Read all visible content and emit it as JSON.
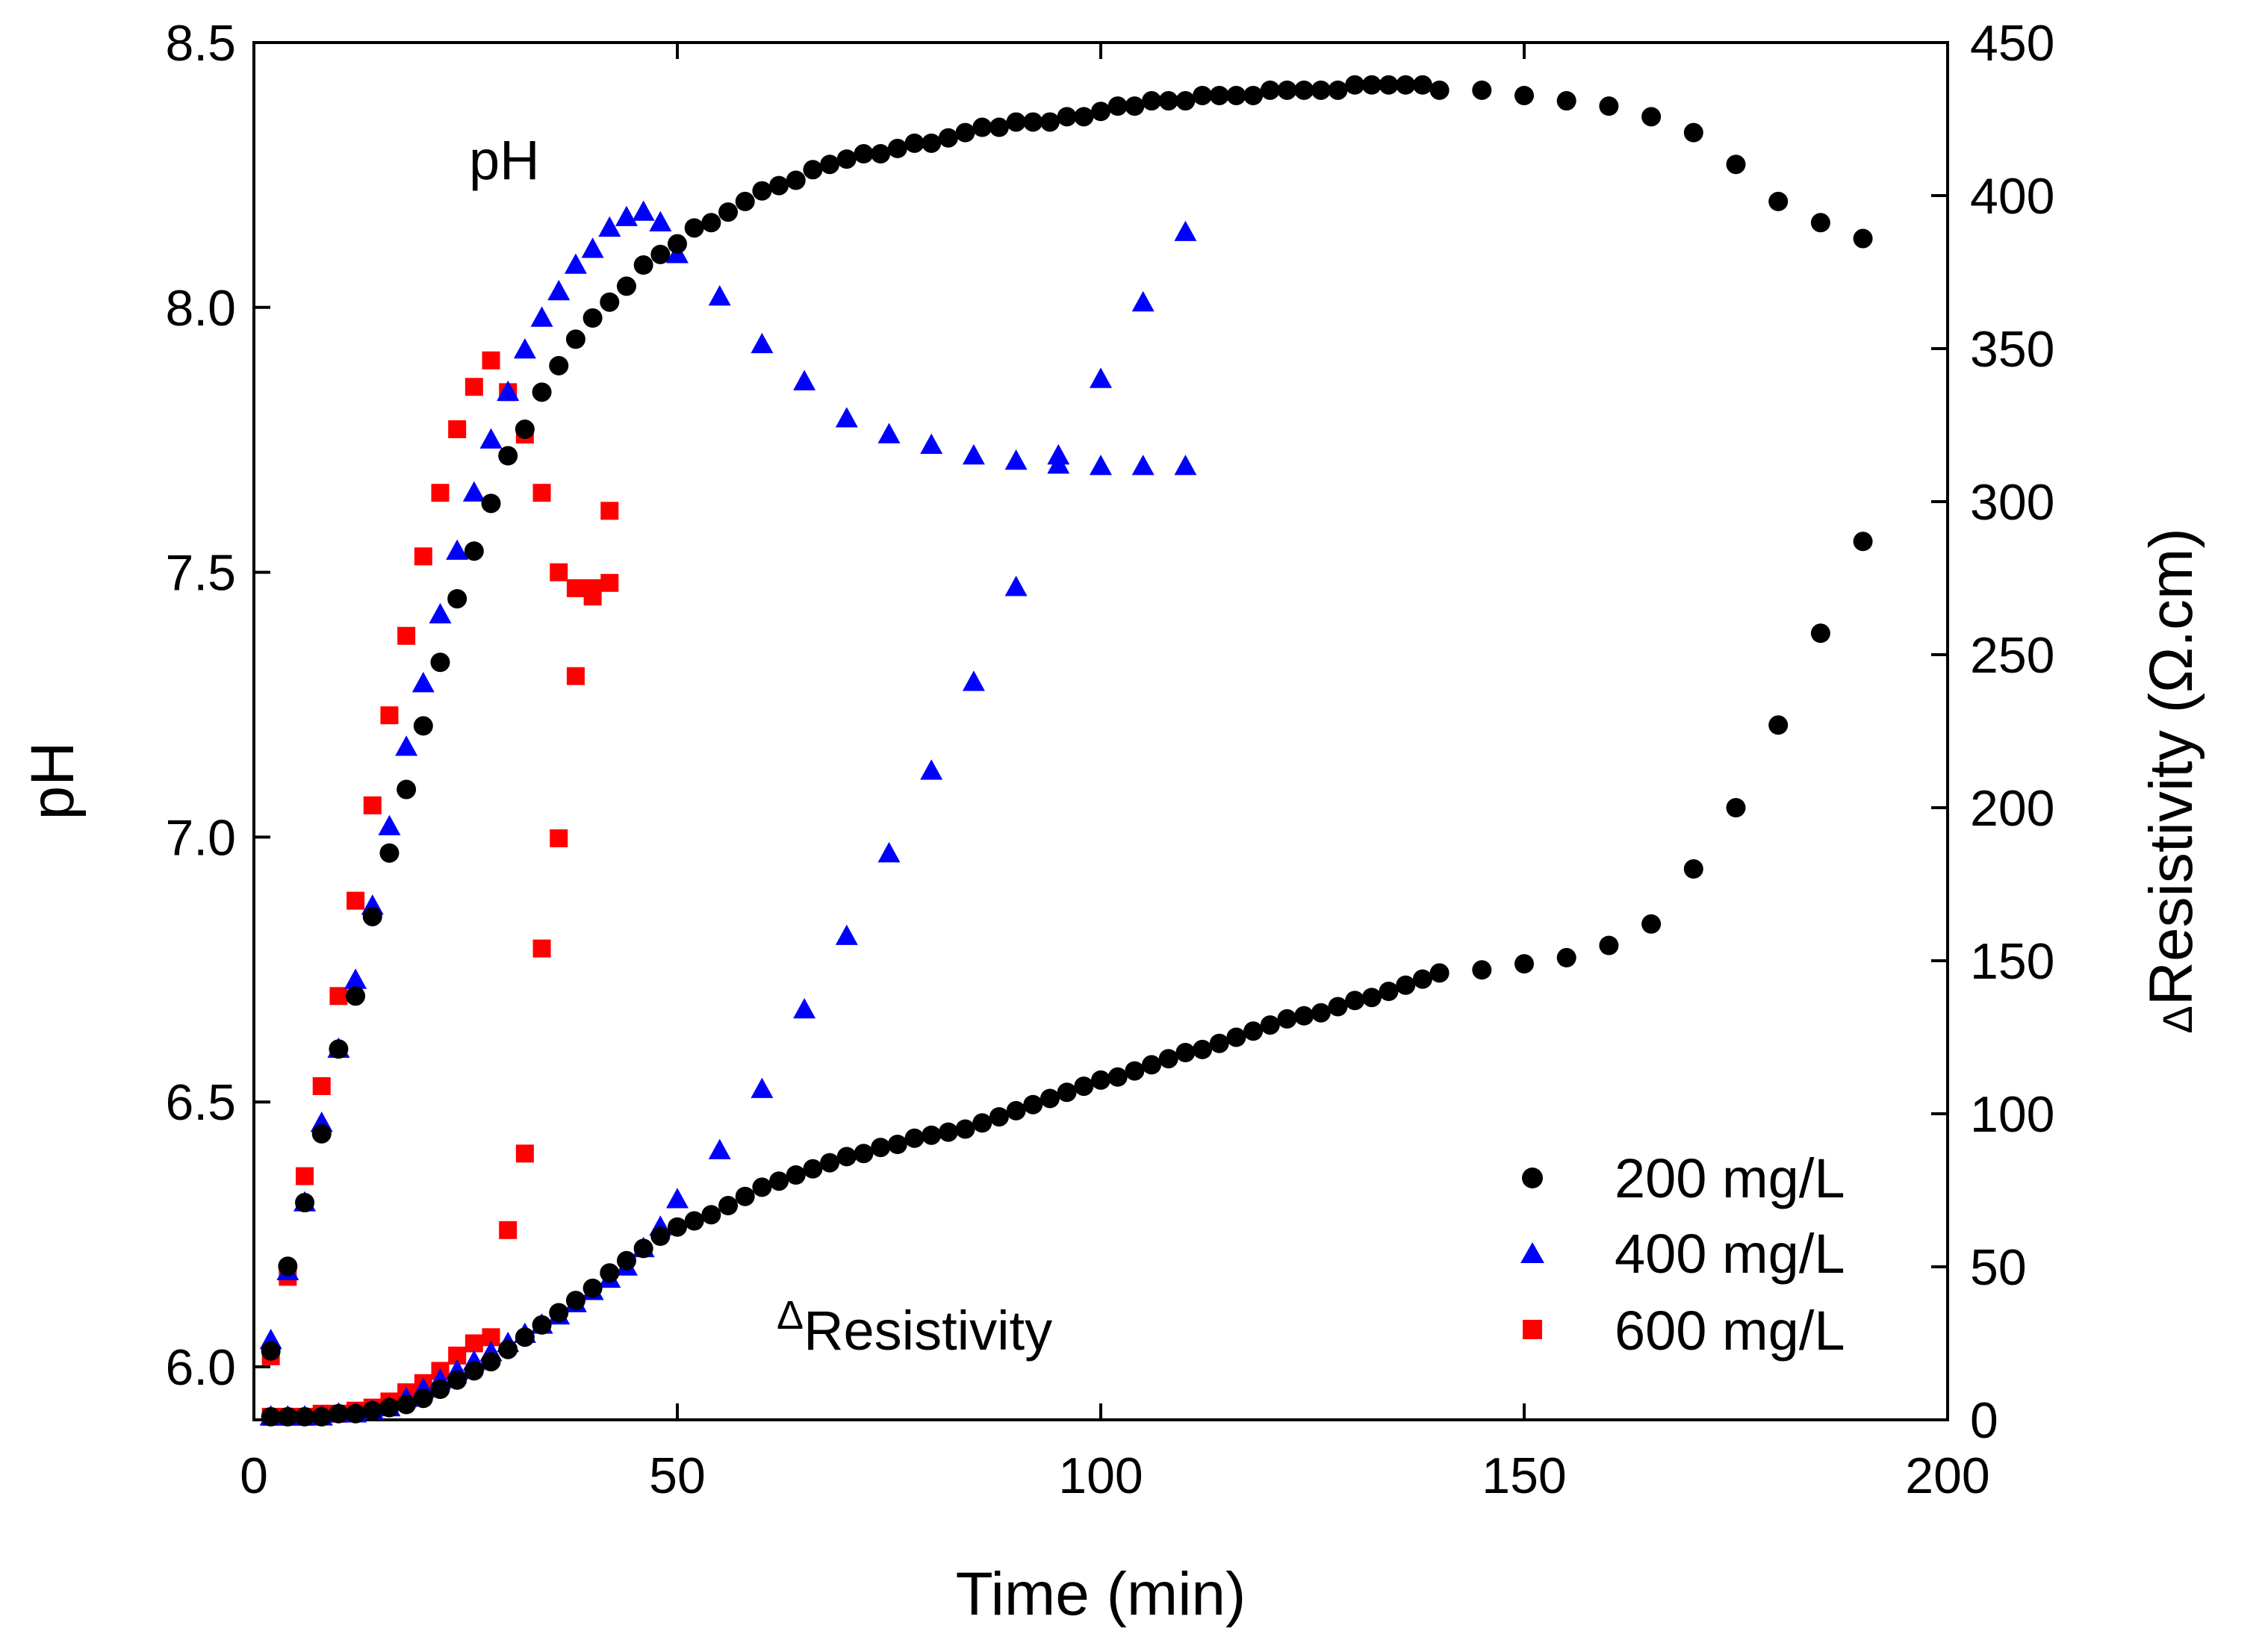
{
  "chart_data": {
    "type": "scatter",
    "title": "",
    "xlabel": "Time (min)",
    "ylabel": "pH",
    "y2label": "Resistivity (Ω.cm)",
    "y2label_prefix": "Δ",
    "xlim": [
      0,
      200
    ],
    "ylim": [
      5.9,
      8.5
    ],
    "y2lim": [
      0,
      450
    ],
    "x_ticks": [
      "0",
      "50",
      "100",
      "150",
      "200"
    ],
    "y_ticks": [
      "6.0",
      "6.5",
      "7.0",
      "7.5",
      "8.0",
      "8.5"
    ],
    "y2_ticks": [
      "0",
      "50",
      "100",
      "150",
      "200",
      "250",
      "300",
      "350",
      "400",
      "450"
    ],
    "grid": false,
    "legend_position": "bottom-right",
    "annotations": {
      "ph_label": "pH",
      "resistivity_label_prefix": "Δ",
      "resistivity_label": "Resistivity"
    },
    "series": [
      {
        "name": "200 mg/L",
        "color": "#000000",
        "marker": "circle",
        "ph": {
          "x": [
            2,
            4,
            6,
            8,
            10,
            12,
            14,
            16,
            18,
            20,
            22,
            24,
            26,
            28,
            30,
            32,
            34,
            36,
            38,
            40,
            42,
            44,
            46,
            48,
            50,
            52,
            54,
            56,
            58,
            60,
            62,
            64,
            66,
            68,
            70,
            72,
            74,
            76,
            78,
            80,
            82,
            84,
            86,
            88,
            90,
            92,
            94,
            96,
            98,
            100,
            102,
            104,
            106,
            108,
            110,
            112,
            114,
            116,
            118,
            120,
            122,
            124,
            126,
            128,
            130,
            132,
            134,
            136,
            138,
            140,
            145,
            150,
            155,
            160,
            165,
            170,
            175,
            180,
            185,
            190
          ],
          "y": [
            6.03,
            6.19,
            6.31,
            6.44,
            6.6,
            6.7,
            6.85,
            6.97,
            7.09,
            7.21,
            7.33,
            7.45,
            7.54,
            7.63,
            7.72,
            7.77,
            7.84,
            7.89,
            7.94,
            7.98,
            8.01,
            8.04,
            8.08,
            8.1,
            8.12,
            8.15,
            8.16,
            8.18,
            8.2,
            8.22,
            8.23,
            8.24,
            8.26,
            8.27,
            8.28,
            8.29,
            8.29,
            8.3,
            8.31,
            8.31,
            8.32,
            8.33,
            8.34,
            8.34,
            8.35,
            8.35,
            8.35,
            8.36,
            8.36,
            8.37,
            8.38,
            8.38,
            8.39,
            8.39,
            8.39,
            8.4,
            8.4,
            8.4,
            8.4,
            8.41,
            8.41,
            8.41,
            8.41,
            8.41,
            8.42,
            8.42,
            8.42,
            8.42,
            8.42,
            8.41,
            8.41,
            8.4,
            8.39,
            8.38,
            8.36,
            8.33,
            8.27,
            8.2,
            8.16,
            8.13
          ]
        },
        "resistivity": {
          "x": [
            2,
            4,
            6,
            8,
            10,
            12,
            14,
            16,
            18,
            20,
            22,
            24,
            26,
            28,
            30,
            32,
            34,
            36,
            38,
            40,
            42,
            44,
            46,
            48,
            50,
            52,
            54,
            56,
            58,
            60,
            62,
            64,
            66,
            68,
            70,
            72,
            74,
            76,
            78,
            80,
            82,
            84,
            86,
            88,
            90,
            92,
            94,
            96,
            98,
            100,
            102,
            104,
            106,
            108,
            110,
            112,
            114,
            116,
            118,
            120,
            122,
            124,
            126,
            128,
            130,
            132,
            134,
            136,
            138,
            140,
            145,
            150,
            155,
            160,
            165,
            170,
            175,
            180,
            185,
            190
          ],
          "y": [
            1,
            1,
            1,
            1,
            2,
            2,
            3,
            4,
            5,
            7,
            10,
            13,
            16,
            19,
            23,
            27,
            31,
            35,
            39,
            43,
            48,
            52,
            56,
            60,
            63,
            65,
            67,
            70,
            73,
            76,
            78,
            80,
            82,
            84,
            86,
            87,
            89,
            90,
            92,
            93,
            94,
            95,
            97,
            99,
            101,
            103,
            105,
            107,
            109,
            111,
            112,
            114,
            116,
            118,
            120,
            121,
            123,
            125,
            127,
            129,
            131,
            132,
            133,
            135,
            137,
            138,
            140,
            142,
            144,
            146,
            147,
            149,
            151,
            155,
            162,
            180,
            200,
            227,
            257,
            287
          ]
        }
      },
      {
        "name": "400 mg/L",
        "color": "#0000FF",
        "marker": "triangle",
        "ph": {
          "x": [
            2,
            4,
            6,
            8,
            10,
            12,
            14,
            16,
            18,
            20,
            22,
            24,
            26,
            28,
            30,
            32,
            34,
            36,
            38,
            40,
            42,
            44,
            46,
            48,
            50,
            55,
            60,
            65,
            70,
            75,
            80,
            85,
            90,
            95,
            100,
            105,
            110
          ],
          "y": [
            6.05,
            6.18,
            6.31,
            6.46,
            6.6,
            6.73,
            6.87,
            7.02,
            7.17,
            7.29,
            7.42,
            7.54,
            7.65,
            7.75,
            7.84,
            7.92,
            7.98,
            8.03,
            8.08,
            8.11,
            8.15,
            8.17,
            8.18,
            8.16,
            8.1,
            8.02,
            7.93,
            7.86,
            7.79,
            7.76,
            7.74,
            7.72,
            7.71,
            7.72,
            7.7,
            7.7,
            7.7
          ]
        },
        "resistivity": {
          "x": [
            2,
            4,
            6,
            8,
            10,
            12,
            14,
            16,
            18,
            20,
            22,
            24,
            26,
            28,
            30,
            32,
            34,
            36,
            38,
            40,
            42,
            44,
            46,
            48,
            50,
            55,
            60,
            65,
            70,
            75,
            80,
            85,
            90,
            95,
            100,
            105,
            110
          ],
          "y": [
            1,
            1,
            1,
            1,
            2,
            2,
            3,
            4,
            7,
            10,
            13,
            16,
            19,
            22,
            25,
            28,
            31,
            34,
            38,
            42,
            46,
            50,
            56,
            63,
            72,
            88,
            108,
            134,
            158,
            185,
            212,
            241,
            272,
            312,
            340,
            365,
            388
          ]
        }
      },
      {
        "name": "600 mg/L",
        "color": "#FF0000",
        "marker": "square",
        "ph": {
          "x": [
            2,
            4,
            6,
            8,
            10,
            12,
            14,
            16,
            18,
            20,
            22,
            24,
            26,
            28,
            30,
            32,
            34,
            36,
            38,
            40,
            42
          ],
          "y": [
            6.02,
            6.17,
            6.36,
            6.53,
            6.7,
            6.88,
            7.06,
            7.23,
            7.38,
            7.53,
            7.65,
            7.77,
            7.85,
            7.9,
            7.84,
            7.76,
            7.65,
            7.5,
            7.47,
            7.47,
            7.48
          ]
        },
        "resistivity": {
          "x": [
            2,
            4,
            6,
            8,
            10,
            12,
            14,
            16,
            18,
            20,
            22,
            24,
            26,
            28,
            30,
            32,
            34,
            36,
            38,
            40,
            42
          ],
          "y": [
            1,
            1,
            1,
            2,
            2,
            3,
            4,
            6,
            9,
            12,
            16,
            21,
            25,
            27,
            62,
            87,
            154,
            190,
            243,
            269,
            297
          ]
        }
      }
    ]
  }
}
